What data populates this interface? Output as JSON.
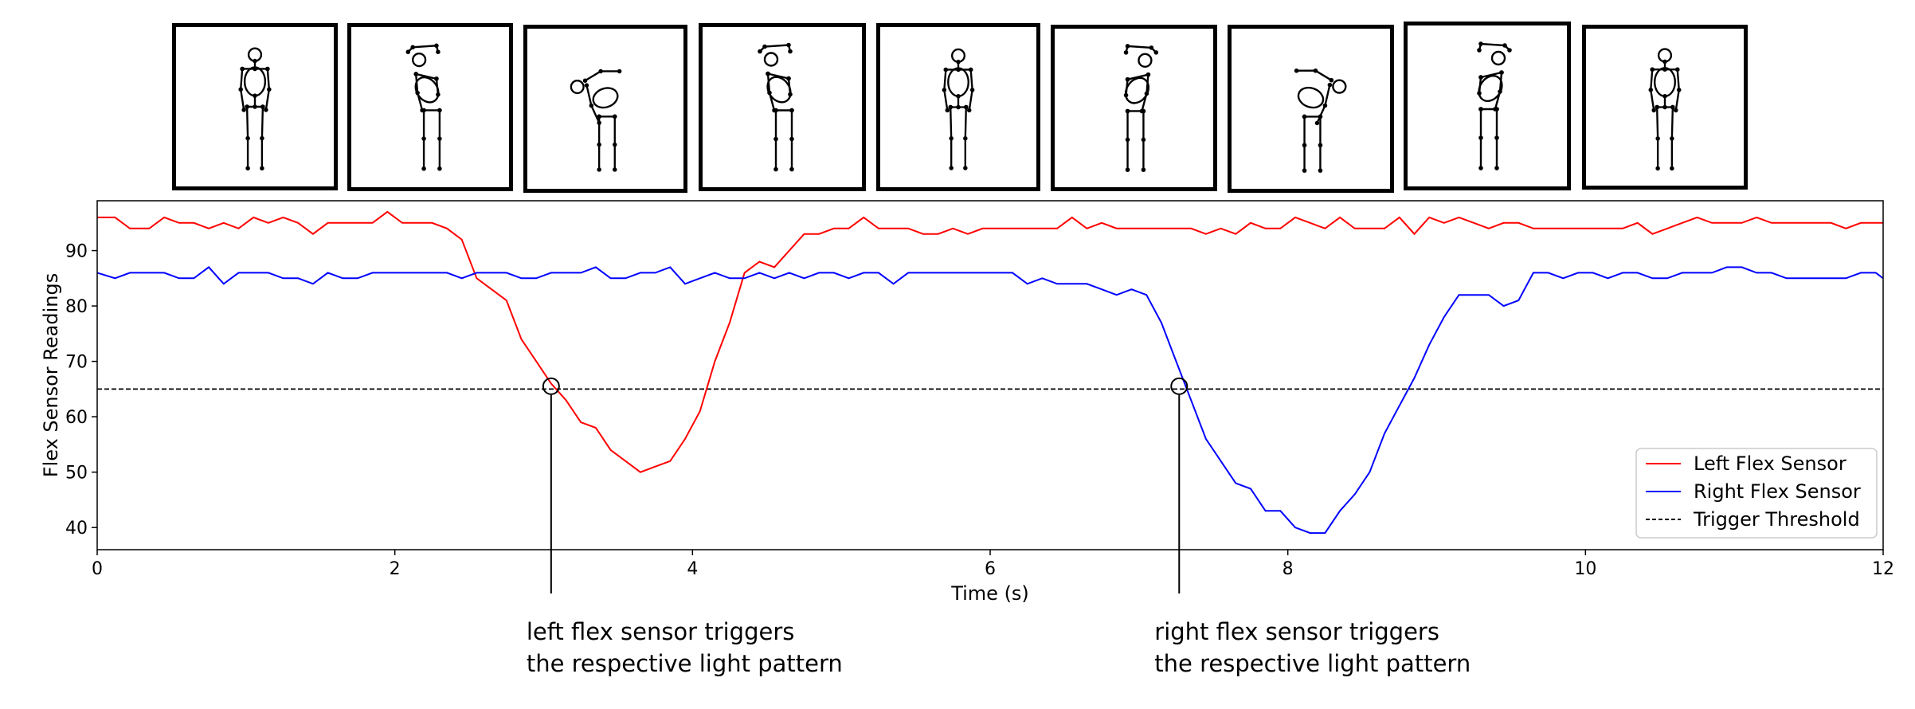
{
  "pose_sequence": [
    {
      "icon": "stick-figure-standing-icon"
    },
    {
      "icon": "stick-figure-bending-left-icon"
    },
    {
      "icon": "stick-figure-bent-over-left-icon"
    },
    {
      "icon": "stick-figure-bending-left-icon"
    },
    {
      "icon": "stick-figure-standing-icon"
    },
    {
      "icon": "stick-figure-bending-right-icon"
    },
    {
      "icon": "stick-figure-bent-over-right-icon"
    },
    {
      "icon": "stick-figure-bending-right-icon"
    },
    {
      "icon": "stick-figure-standing-icon"
    }
  ],
  "chart_data": {
    "type": "line",
    "title": "",
    "xlabel": "Time (s)",
    "ylabel": "Flex Sensor Readings",
    "xlim": [
      0,
      12
    ],
    "ylim": [
      36,
      99
    ],
    "xticks": [
      "0",
      "2",
      "4",
      "6",
      "8",
      "10",
      "12"
    ],
    "yticks": [
      "40",
      "50",
      "60",
      "70",
      "80",
      "90"
    ],
    "grid": false,
    "legend_position": "lower-right",
    "threshold": {
      "name": "Trigger Threshold",
      "y": 65,
      "color": "#000000",
      "style": "dashed"
    },
    "series": [
      {
        "name": "Left Flex Sensor",
        "color": "#ff0000",
        "x": [
          0,
          0.12,
          0.22,
          0.35,
          0.45,
          0.55,
          0.65,
          0.75,
          0.85,
          0.95,
          1.05,
          1.15,
          1.25,
          1.35,
          1.45,
          1.55,
          1.65,
          1.75,
          1.85,
          1.95,
          2.05,
          2.15,
          2.25,
          2.35,
          2.45,
          2.55,
          2.65,
          2.75,
          2.85,
          2.95,
          3.05,
          3.15,
          3.25,
          3.35,
          3.45,
          3.55,
          3.65,
          3.75,
          3.85,
          3.95,
          4.05,
          4.15,
          4.25,
          4.35,
          4.45,
          4.55,
          4.65,
          4.75,
          4.85,
          4.95,
          5.05,
          5.15,
          5.25,
          5.35,
          5.45,
          5.55,
          5.65,
          5.75,
          5.85,
          5.95,
          6.05,
          6.15,
          6.25,
          6.35,
          6.45,
          6.55,
          6.65,
          6.75,
          6.85,
          6.95,
          7.05,
          7.15,
          7.25,
          7.35,
          7.45,
          7.55,
          7.65,
          7.75,
          7.85,
          7.95,
          8.05,
          8.15,
          8.25,
          8.35,
          8.45,
          8.55,
          8.65,
          8.75,
          8.85,
          8.95,
          9.05,
          9.15,
          9.25,
          9.35,
          9.45,
          9.55,
          9.65,
          9.75,
          9.85,
          9.95,
          10.05,
          10.15,
          10.25,
          10.35,
          10.45,
          10.55,
          10.65,
          10.75,
          10.85,
          10.95,
          11.05,
          11.15,
          11.25,
          11.35,
          11.45,
          11.55,
          11.65,
          11.75,
          11.85,
          12
        ],
        "y": [
          96,
          96,
          94,
          94,
          96,
          95,
          95,
          94,
          95,
          94,
          96,
          95,
          96,
          95,
          93,
          95,
          95,
          95,
          95,
          97,
          95,
          95,
          95,
          94,
          92,
          85,
          83,
          81,
          74,
          70,
          66,
          63,
          59,
          58,
          54,
          52,
          50,
          51,
          52,
          56,
          61,
          70,
          77,
          86,
          88,
          87,
          90,
          93,
          93,
          94,
          94,
          96,
          94,
          94,
          94,
          93,
          93,
          94,
          93,
          94,
          94,
          94,
          94,
          94,
          94,
          96,
          94,
          95,
          94,
          94,
          94,
          94,
          94,
          94,
          93,
          94,
          93,
          95,
          94,
          94,
          96,
          95,
          94,
          96,
          94,
          94,
          94,
          96,
          93,
          96,
          95,
          96,
          95,
          94,
          95,
          95,
          94,
          94,
          94,
          94,
          94,
          94,
          94,
          95,
          93,
          94,
          95,
          96,
          95,
          95,
          95,
          96,
          95,
          95,
          95,
          95,
          95,
          94,
          95,
          95
        ]
      },
      {
        "name": "Right Flex Sensor",
        "color": "#0000ff",
        "x": [
          0,
          0.12,
          0.22,
          0.35,
          0.45,
          0.55,
          0.65,
          0.75,
          0.85,
          0.95,
          1.05,
          1.15,
          1.25,
          1.35,
          1.45,
          1.55,
          1.65,
          1.75,
          1.85,
          1.95,
          2.05,
          2.15,
          2.25,
          2.35,
          2.45,
          2.55,
          2.65,
          2.75,
          2.85,
          2.95,
          3.05,
          3.15,
          3.25,
          3.35,
          3.45,
          3.55,
          3.65,
          3.75,
          3.85,
          3.95,
          4.05,
          4.15,
          4.25,
          4.35,
          4.45,
          4.55,
          4.65,
          4.75,
          4.85,
          4.95,
          5.05,
          5.15,
          5.25,
          5.35,
          5.45,
          5.55,
          5.65,
          5.75,
          5.85,
          5.95,
          6.05,
          6.15,
          6.25,
          6.35,
          6.45,
          6.55,
          6.65,
          6.75,
          6.85,
          6.95,
          7.05,
          7.15,
          7.25,
          7.35,
          7.45,
          7.55,
          7.65,
          7.75,
          7.85,
          7.95,
          8.05,
          8.15,
          8.25,
          8.35,
          8.45,
          8.55,
          8.65,
          8.75,
          8.85,
          8.95,
          9.05,
          9.15,
          9.25,
          9.35,
          9.45,
          9.55,
          9.65,
          9.75,
          9.85,
          9.95,
          10.05,
          10.15,
          10.25,
          10.35,
          10.45,
          10.55,
          10.65,
          10.75,
          10.85,
          10.95,
          11.05,
          11.15,
          11.25,
          11.35,
          11.45,
          11.55,
          11.65,
          11.75,
          11.85,
          11.95,
          12
        ],
        "y": [
          86,
          85,
          86,
          86,
          86,
          85,
          85,
          87,
          84,
          86,
          86,
          86,
          85,
          85,
          84,
          86,
          85,
          85,
          86,
          86,
          86,
          86,
          86,
          86,
          85,
          86,
          86,
          86,
          85,
          85,
          86,
          86,
          86,
          87,
          85,
          85,
          86,
          86,
          87,
          84,
          85,
          86,
          85,
          85,
          86,
          85,
          86,
          85,
          86,
          86,
          85,
          86,
          86,
          84,
          86,
          86,
          86,
          86,
          86,
          86,
          86,
          86,
          84,
          85,
          84,
          84,
          84,
          83,
          82,
          83,
          82,
          77,
          70,
          63,
          56,
          52,
          48,
          47,
          43,
          43,
          40,
          39,
          39,
          43,
          46,
          50,
          57,
          62,
          67,
          73,
          78,
          82,
          82,
          82,
          80,
          81,
          86,
          86,
          85,
          86,
          86,
          85,
          86,
          86,
          85,
          85,
          86,
          86,
          86,
          87,
          87,
          86,
          86,
          85,
          85,
          85,
          85,
          85,
          86,
          86,
          85
        ]
      }
    ],
    "markers": [
      {
        "x": 3.05,
        "y": 65.5
      },
      {
        "x": 7.27,
        "y": 65.5
      }
    ],
    "annotations": [
      {
        "x": 3.05,
        "lines": [
          "left flex sensor triggers",
          "the respective light pattern"
        ]
      },
      {
        "x": 7.27,
        "lines": [
          "right flex sensor triggers",
          "the respective light pattern"
        ]
      }
    ]
  }
}
